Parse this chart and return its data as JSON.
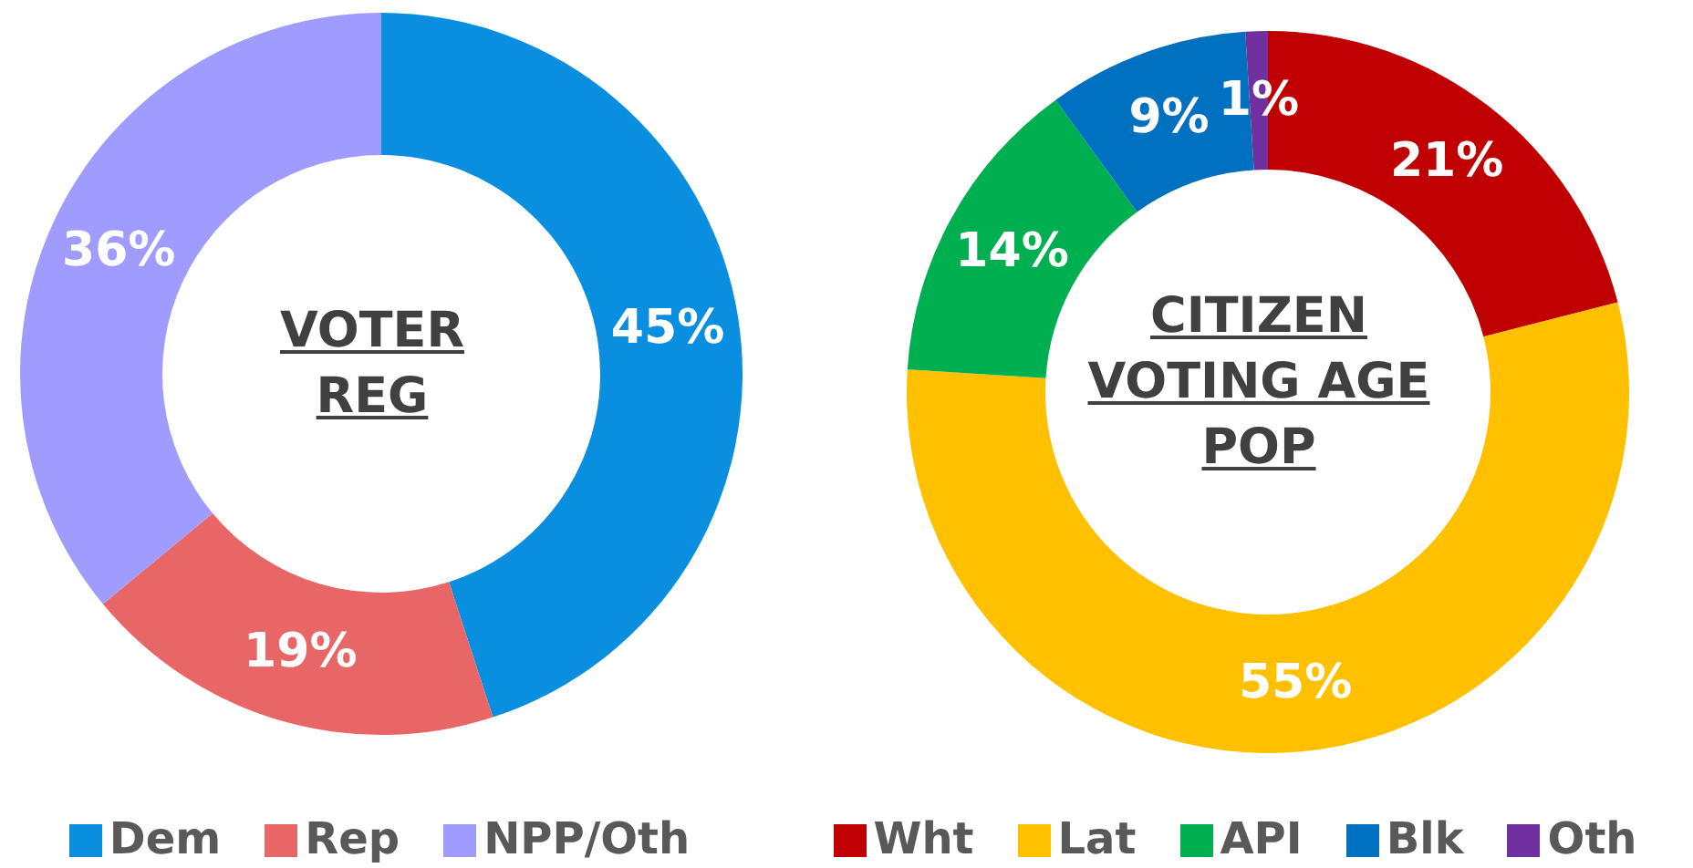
{
  "chart_data": [
    {
      "type": "donut",
      "title": "VOTER\nREG",
      "categories": [
        "Dem",
        "Rep",
        "NPP/Oth"
      ],
      "values": [
        45,
        19,
        36
      ],
      "value_labels": [
        "45%",
        "19%",
        "36%"
      ],
      "colors": [
        "#0a8ee0",
        "#e86666",
        "#a09cff"
      ],
      "legend": "bottom"
    },
    {
      "type": "donut",
      "title": "CITIZEN\nVOTING AGE\nPOP",
      "categories": [
        "Wht",
        "Lat",
        "API",
        "Blk",
        "Oth"
      ],
      "values": [
        21,
        55,
        14,
        9,
        1
      ],
      "value_labels": [
        "21%",
        "55%",
        "14%",
        "9%",
        "1%"
      ],
      "colors": [
        "#c00000",
        "#ffc000",
        "#00b050",
        "#0070c0",
        "#7030a0"
      ],
      "legend": "bottom"
    }
  ]
}
